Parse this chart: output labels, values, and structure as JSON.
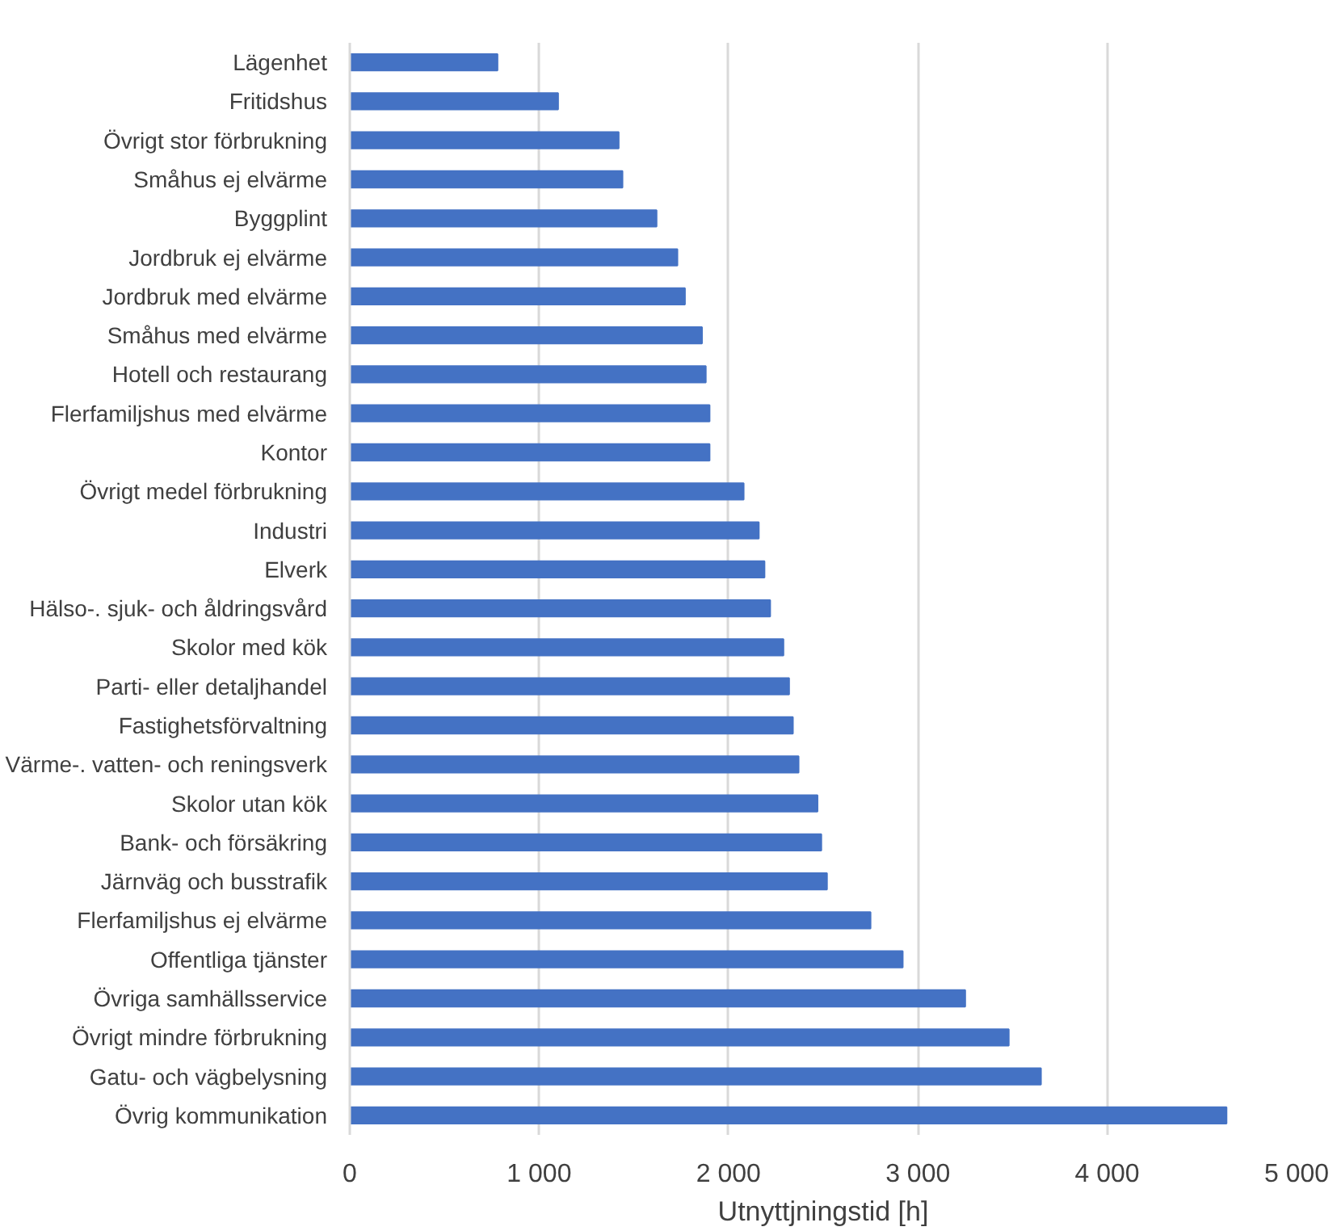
{
  "chart_data": {
    "type": "bar",
    "orientation": "horizontal",
    "xlabel": "Utnyttjningstid [h]",
    "categories": [
      "Lägenhet",
      "Fritidshus",
      "Övrigt stor förbrukning",
      "Småhus ej elvärme",
      "Byggplint",
      "Jordbruk ej elvärme",
      "Jordbruk med elvärme",
      "Småhus med elvärme",
      "Hotell och restaurang",
      "Flerfamiljshus med elvärme",
      "Kontor",
      "Övrigt medel förbrukning",
      "Industri",
      "Elverk",
      "Hälso-. sjuk- och åldringsvård",
      "Skolor med kök",
      "Parti- eller detaljhandel",
      "Fastighetsförvaltning",
      "Värme-. vatten- och reningsverk",
      "Skolor utan kök",
      "Bank- och försäkring",
      "Järnväg och busstrafik",
      "Flerfamiljshus ej elvärme",
      "Offentliga tjänster",
      "Övriga samhällsservice",
      "Övrigt mindre förbrukning",
      "Gatu- och vägbelysning",
      "Övrig kommunikation"
    ],
    "values": [
      780,
      1100,
      1420,
      1440,
      1620,
      1730,
      1770,
      1860,
      1880,
      1900,
      1900,
      2080,
      2160,
      2190,
      2220,
      2290,
      2320,
      2340,
      2370,
      2470,
      2490,
      2520,
      2750,
      2920,
      3250,
      3480,
      3650,
      4630
    ],
    "color": "#4472c4",
    "xlim": [
      0,
      5000
    ],
    "xticks": [
      0,
      {
        "value": 1000,
        "label": "1 000"
      },
      {
        "value": 2000,
        "label": "2 000"
      },
      {
        "value": 3000,
        "label": "3 000"
      },
      {
        "value": 4000,
        "label": "4 000"
      },
      {
        "value": 5000,
        "label": "5 000"
      }
    ],
    "grid": "x"
  }
}
